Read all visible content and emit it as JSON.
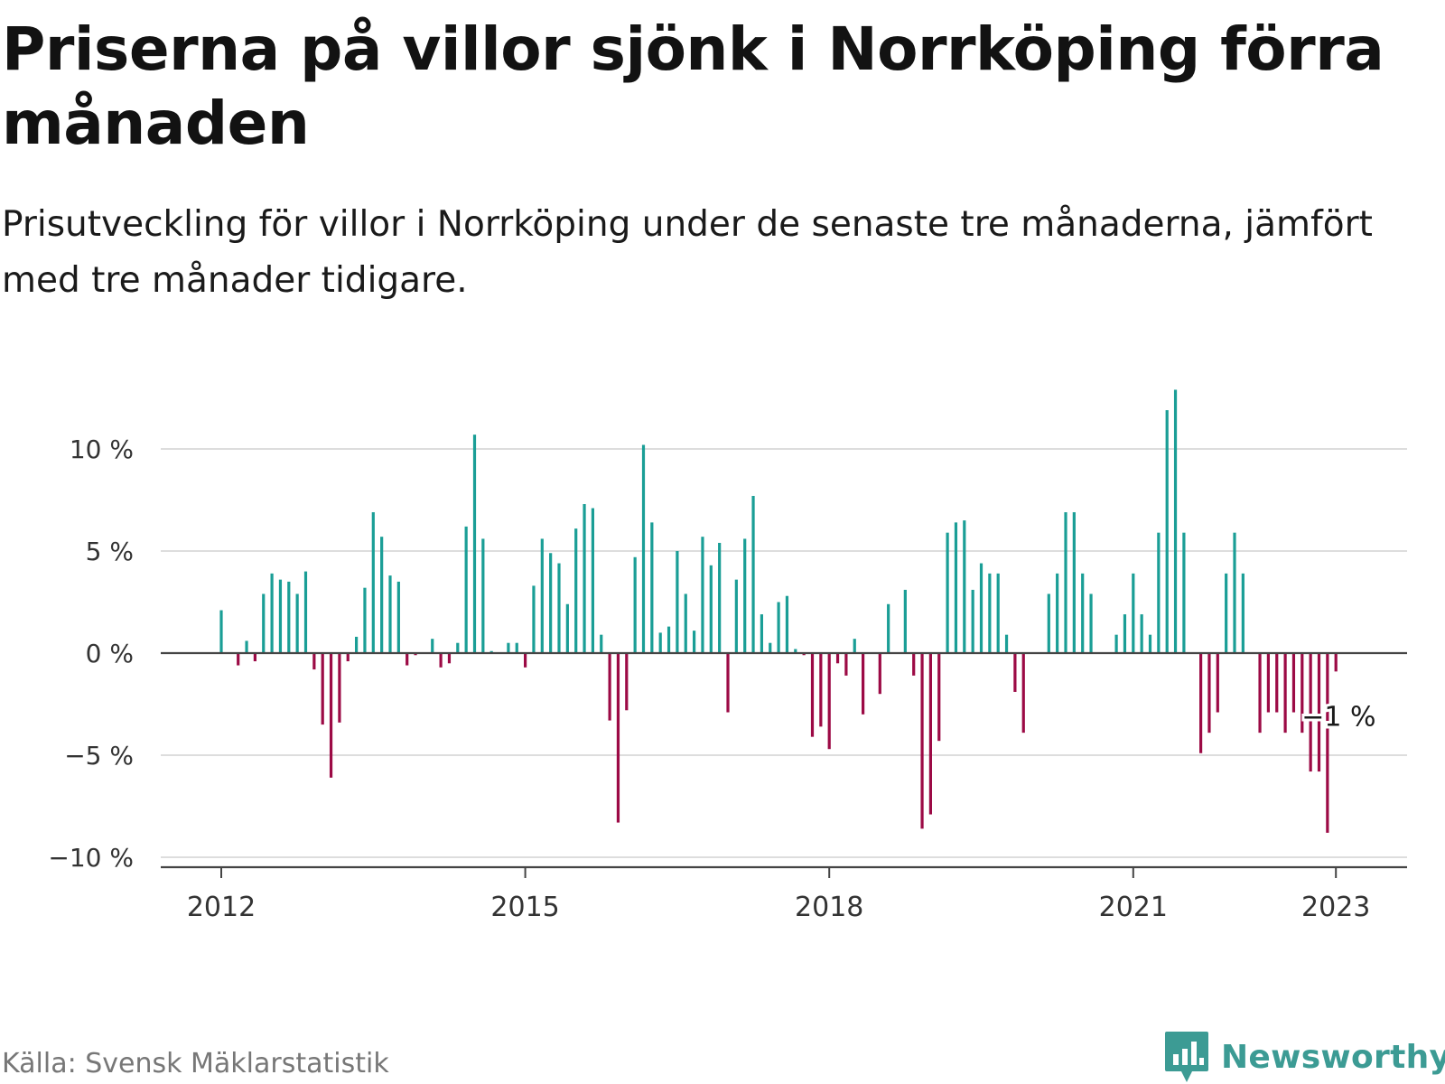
{
  "header": {
    "title": "Priserna på villor sjönk i Norrköping förra månaden",
    "subtitle": "Prisutveckling för villor i Norrköping under de senaste tre månaderna, jämfört med tre månader tidigare."
  },
  "footer": {
    "source": "Källa: Svensk Mäklarstatistik",
    "brand": "Newsworthy",
    "brand_icon": "chart-bubble-icon"
  },
  "colors": {
    "positive": "#1a9e96",
    "negative": "#9c0a45",
    "grid": "#dddddd",
    "axis": "#444444",
    "brand": "#3c9b94"
  },
  "chart_data": {
    "type": "bar",
    "title": "Priserna på villor sjönk i Norrköping förra månaden",
    "subtitle": "Prisutveckling för villor i Norrköping under de senaste tre månaderna, jämfört med tre månader tidigare.",
    "xlabel": "",
    "ylabel": "",
    "ylim": [
      -10.5,
      13
    ],
    "grid": true,
    "yticks": [
      10,
      5,
      0,
      -5,
      -10
    ],
    "ytick_labels": [
      "10 %",
      "5 %",
      "0 %",
      "−5 %",
      "−10 %"
    ],
    "xticks": [
      "2012",
      "2015",
      "2018",
      "2021",
      "2023"
    ],
    "start": "2012-01",
    "interval": "month",
    "values": [
      2.1,
      0,
      -0.6,
      0.6,
      -0.4,
      2.9,
      3.9,
      3.6,
      3.5,
      2.9,
      4.0,
      -0.8,
      -3.5,
      -6.1,
      -3.4,
      -0.4,
      0.8,
      3.2,
      6.9,
      5.7,
      3.8,
      3.5,
      -0.6,
      -0.1,
      0,
      0.7,
      -0.7,
      -0.5,
      0.5,
      6.2,
      10.7,
      5.6,
      0.1,
      0,
      0.5,
      0.5,
      -0.7,
      3.3,
      5.6,
      4.9,
      4.4,
      2.4,
      6.1,
      7.3,
      7.1,
      0.9,
      -3.3,
      -8.3,
      -2.8,
      4.7,
      10.2,
      6.4,
      1.0,
      1.3,
      5.0,
      2.9,
      1.1,
      5.7,
      4.3,
      5.4,
      -2.9,
      3.6,
      5.6,
      7.7,
      1.9,
      0.5,
      2.5,
      2.8,
      0.2,
      -0.1,
      -4.1,
      -3.6,
      -4.7,
      -0.5,
      -1.1,
      0.7,
      -3.0,
      0,
      -2.0,
      2.4,
      0,
      3.1,
      -1.1,
      -8.6,
      -7.9,
      -4.3,
      5.9,
      6.4,
      6.5,
      3.1,
      4.4,
      3.9,
      3.9,
      0.9,
      -1.9,
      -3.9,
      0,
      0,
      2.9,
      3.9,
      6.9,
      6.9,
      3.9,
      2.9,
      0,
      0,
      0.9,
      1.9,
      3.9,
      1.9,
      0.9,
      5.9,
      11.9,
      12.9,
      5.9,
      0,
      -4.9,
      -3.9,
      -2.9,
      3.9,
      5.9,
      3.9,
      0,
      -3.9,
      -2.9,
      -2.9,
      -3.9,
      -2.9,
      -3.9,
      -5.8,
      -5.8,
      -8.8,
      -0.9
    ],
    "annotation": {
      "text": "−1 %",
      "value": -0.9
    }
  }
}
